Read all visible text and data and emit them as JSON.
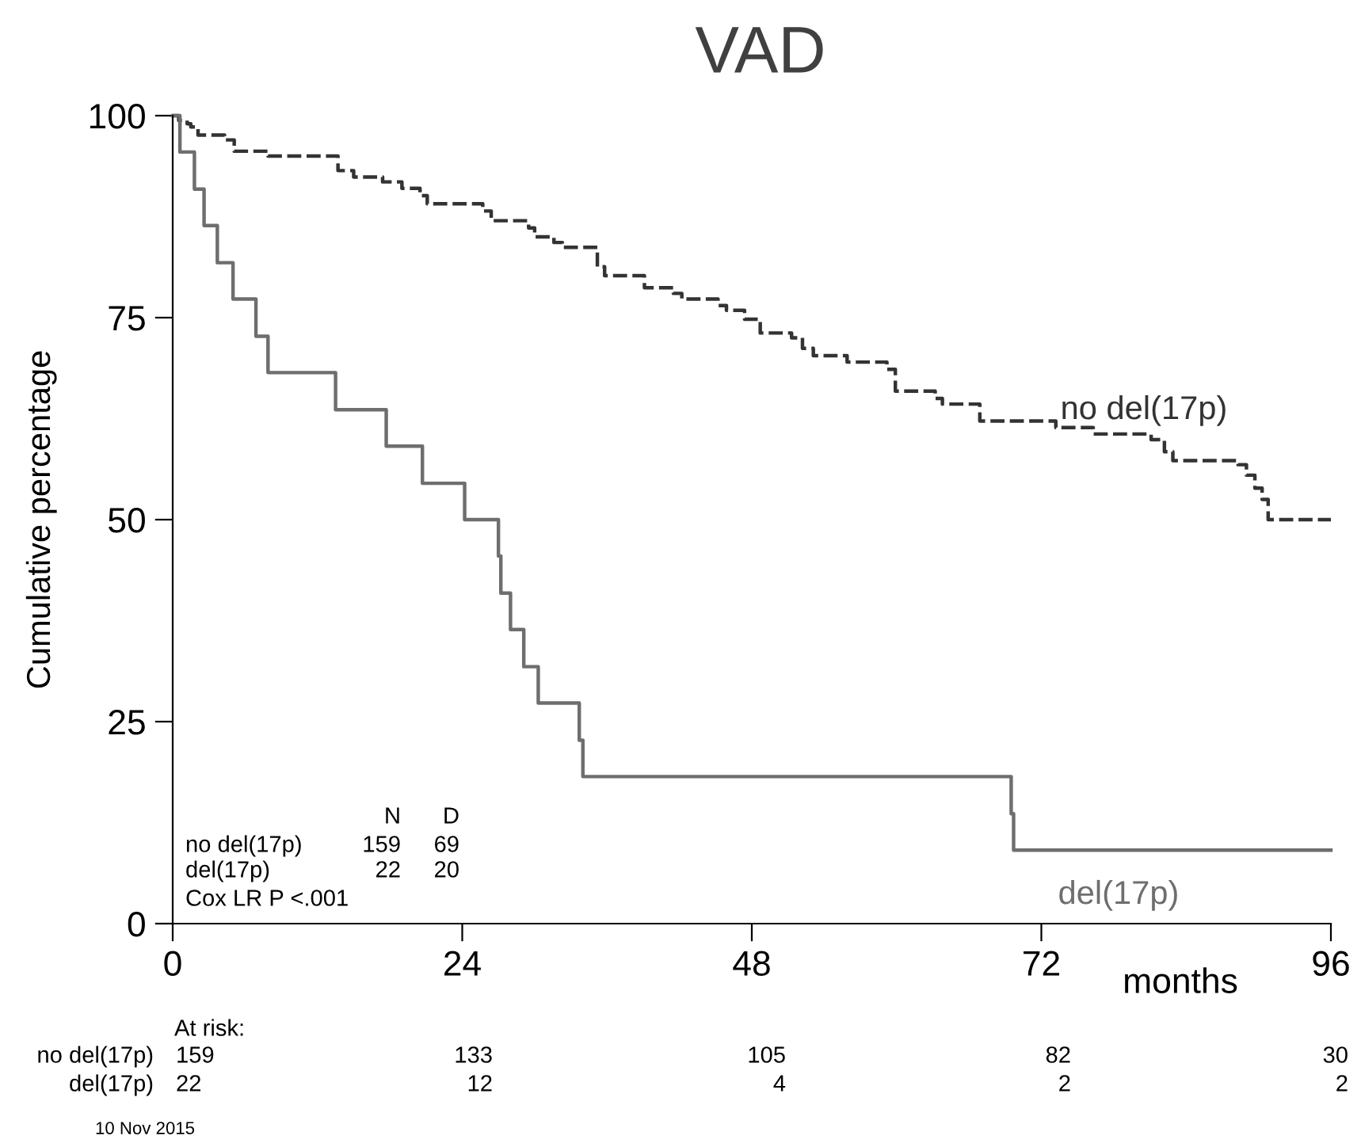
{
  "chart_data": {
    "type": "step",
    "title": "VAD",
    "xlabel": "months",
    "ylabel": "Cumulative percentage",
    "xlim": [
      0,
      96
    ],
    "xticks": [
      0,
      24,
      48,
      72,
      96
    ],
    "ylim": [
      0,
      100
    ],
    "yticks": [
      0,
      25,
      50,
      75,
      100
    ],
    "grid": false,
    "legend": false,
    "line_style": "solid",
    "series": [
      {
        "name": "no del(17p)",
        "color": "#333333",
        "line_style": "dashed",
        "x": [
          0,
          0.5,
          1.2,
          1.5,
          2.1,
          4.3,
          5.1,
          7.9,
          13.7,
          15.0,
          17.4,
          19.0,
          20.5,
          21.1,
          25.7,
          26.4,
          29.5,
          30.0,
          31.6,
          32.3,
          35.2,
          35.8,
          39.1,
          41.5,
          42.2,
          45.2,
          45.9,
          47.4,
          48.7,
          51.3,
          52.2,
          53.1,
          55.9,
          59.2,
          59.9,
          63.2,
          63.8,
          66.9,
          73.2,
          76.3,
          81.1,
          82.2,
          82.9,
          88.3,
          89.0,
          89.7,
          90.3,
          90.8,
          96
        ],
        "values": [
          100,
          99.4,
          99.0,
          98.6,
          97.6,
          97.0,
          95.6,
          95.0,
          93.2,
          92.4,
          91.8,
          91.0,
          90.1,
          89.1,
          88.2,
          87.0,
          86.1,
          85.0,
          84.3,
          83.7,
          81.3,
          80.2,
          78.7,
          78.0,
          77.3,
          76.5,
          75.9,
          74.8,
          73.1,
          72.5,
          71.2,
          70.3,
          69.5,
          68.6,
          65.9,
          65.0,
          64.3,
          62.2,
          61.4,
          60.6,
          59.9,
          58.4,
          57.3,
          56.8,
          55.5,
          53.9,
          52.5,
          50,
          50
        ]
      },
      {
        "name": "del(17p)",
        "color": "#6e6e6e",
        "x": [
          0,
          0.6,
          1.8,
          2.6,
          3.7,
          5.0,
          6.9,
          7.9,
          13.5,
          17.7,
          20.7,
          24.2,
          27.0,
          27.2,
          28.0,
          29.1,
          30.3,
          33.7,
          34.0,
          69.5,
          69.7,
          96
        ],
        "values": [
          100,
          95.5,
          90.9,
          86.4,
          81.8,
          77.3,
          72.7,
          68.2,
          63.6,
          59.1,
          54.5,
          50,
          45.5,
          40.9,
          36.4,
          31.8,
          27.3,
          22.7,
          18.2,
          13.6,
          9.1,
          9.1
        ]
      }
    ],
    "annotations": [
      "N",
      "D",
      "no del(17p)",
      "159",
      "69",
      "del(17p)",
      "22",
      "20",
      "Cox LR P <.001",
      "At risk:",
      "no del(17p)",
      "159",
      "133",
      "105",
      "82",
      "30",
      "del(17p)",
      "22",
      "12",
      "4",
      "2",
      "2",
      "10 Nov 2015"
    ]
  }
}
